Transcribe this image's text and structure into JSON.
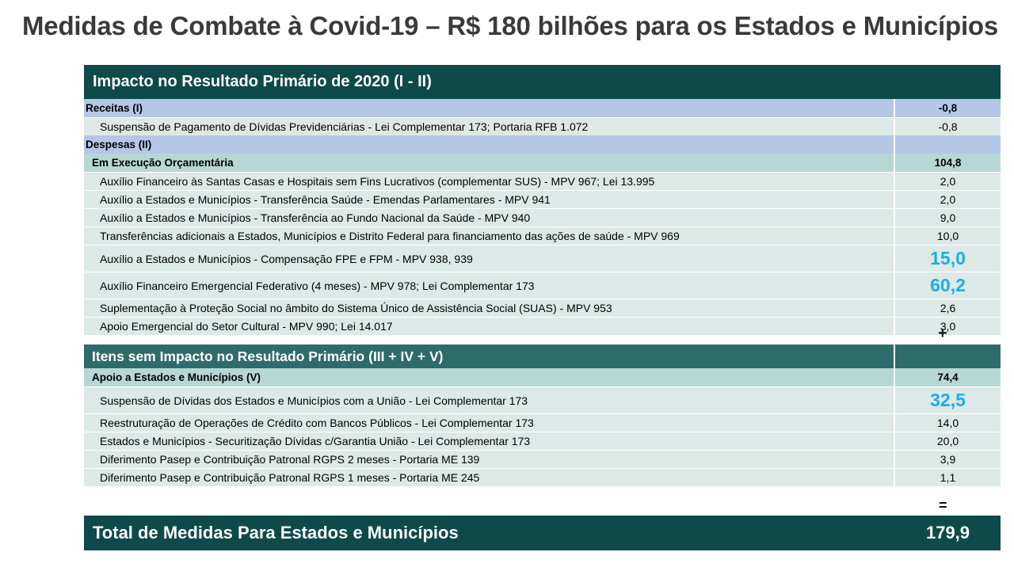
{
  "title": "Medidas de Combate à Covid-19 – R$ 180 bilhões para os Estados e Municípios",
  "primary": {
    "header": "Impacto no Resultado Primário de 2020 (I - II)",
    "receitas": {
      "label": "Receitas (I)",
      "value": "-0,8"
    },
    "receitas_items": [
      {
        "label": "Suspensão de Pagamento de Dívidas Previdenciárias - Lei Complementar  173; Portaria RFB 1.072",
        "value": "-0,8"
      }
    ],
    "despesas": {
      "label": "Despesas (II)",
      "value": ""
    },
    "execucao": {
      "label": "Em Execução Orçamentária",
      "value": "104,8"
    },
    "execucao_items": [
      {
        "label": "Auxílio Financeiro às Santas Casas e Hospitais sem Fins Lucrativos (complementar SUS) - MPV  967; Lei  13.995",
        "value": "2,0"
      },
      {
        "label": "Auxílio a Estados e Municípios - Transferência Saúde - Emendas Parlamentares - MPV  941",
        "value": "2,0"
      },
      {
        "label": "Auxílio a Estados e Municípios - Transferência ao Fundo Nacional da Saúde - MPV  940",
        "value": "9,0"
      },
      {
        "label": "Transferências adicionais a Estados, Municípios e Distrito Federal para financiamento das ações de saúde - MPV  969",
        "value": "10,0"
      },
      {
        "label": "Auxílio a Estados e Municípios - Compensação FPE e FPM - MPV  938, 939",
        "value": "15,0"
      },
      {
        "label": "Auxílio Financeiro Emergencial Federativo (4 meses) - MPV  978; Lei Complementar  173",
        "value": "60,2"
      },
      {
        "label": "Suplementação à Proteção Social no âmbito do Sistema Único de Assistência Social (SUAS) - MPV  953",
        "value": "2,6"
      },
      {
        "label": "Apoio Emergencial do Setor Cultural - MPV  990; Lei  14.017",
        "value": "3,0"
      }
    ]
  },
  "plus_sign": "+",
  "non_primary": {
    "header": "Itens sem Impacto no Resultado Primário (III + IV + V)",
    "apoio": {
      "label": "Apoio a Estados e Municípios (V)",
      "value": "74,4"
    },
    "apoio_items": [
      {
        "label": "Suspensão de Dívidas dos Estados e Municípios com a União  - Lei Complementar  173",
        "value": "32,5"
      },
      {
        "label": "Reestruturação de Operações de Crédito com Bancos Públicos - Lei Complementar  173",
        "value": "14,0"
      },
      {
        "label": "Estados e Municípios - Securitização Dívidas c/Garantia União - Lei Complementar  173",
        "value": "20,0"
      },
      {
        "label": "Diferimento Pasep e Contribuição Patronal RGPS 2 meses - Portaria ME 139",
        "value": "3,9"
      },
      {
        "label": "Diferimento Pasep e Contribuição Patronal RGPS 1 meses - Portaria ME 245",
        "value": "1,1"
      }
    ]
  },
  "equals_sign": "=",
  "total": {
    "label": "Total de Medidas Para Estados e Municípios",
    "value": "179,9"
  },
  "colors": {
    "dark_teal": "#0e4a4a",
    "mid_teal": "#2e6b6b",
    "group_blue": "#b4c7e7",
    "sub_green": "#b7d7d4",
    "row_light": "#dde9e7",
    "highlight_blue": "#19aee8"
  }
}
